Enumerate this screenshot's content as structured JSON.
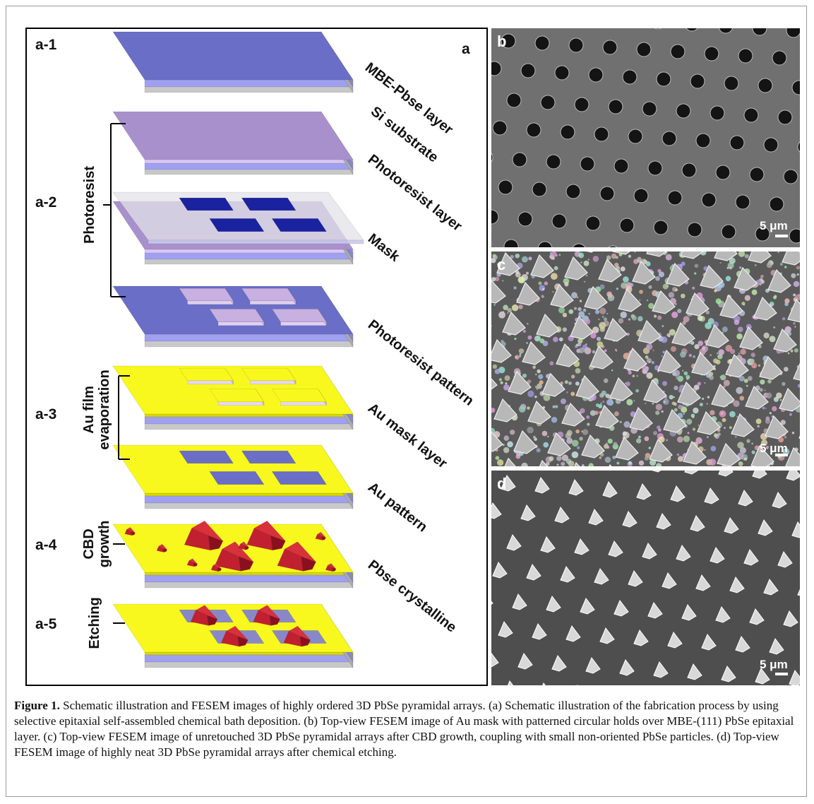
{
  "figure": {
    "panel_a": {
      "letter": "a",
      "steps": [
        "a-1",
        "a-2",
        "a-3",
        "a-4",
        "a-5"
      ],
      "groups": {
        "photoresist": "Photoresist",
        "au_film": [
          "Au film",
          "evaporation"
        ],
        "cbd": [
          "CBD",
          "growth"
        ],
        "etching": "Etching"
      },
      "layer_labels": [
        "MBE-Pbse layer",
        "Si substrate",
        "Photoresist layer",
        "Mask",
        "Photoresist pattern",
        "Au mask layer",
        "Au pattern",
        "Pbse crystalline"
      ]
    },
    "panels": [
      {
        "letter": "b",
        "scale": "5 μm"
      },
      {
        "letter": "c",
        "scale": "5 μm"
      },
      {
        "letter": "d",
        "scale": "5 μm"
      }
    ],
    "caption": {
      "label": "Figure 1.",
      "text": " Schematic illustration and FESEM images of highly ordered 3D PbSe pyramidal arrays. (a) Schematic illustration of the fabrication process by using selective epitaxial self-assembled chemical bath deposition. (b) Top-view FESEM image of Au mask with patterned circular holds over MBE-(111) PbSe epitaxial layer. (c) Top-view FESEM image of unretouched 3D PbSe pyramidal arrays after CBD growth, coupling with small non-oriented PbSe particles. (d) Top-view FESEM image of highly neat 3D PbSe pyramidal arrays after chemical etching."
    }
  }
}
